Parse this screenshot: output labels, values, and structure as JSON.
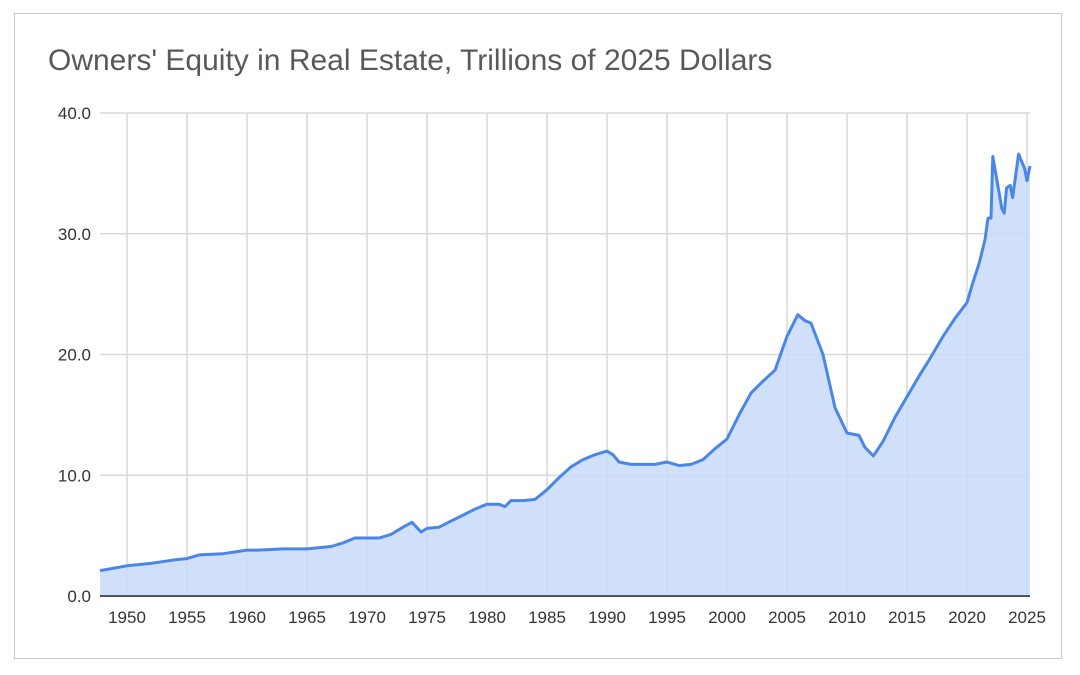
{
  "chart_data": {
    "type": "area",
    "title": "Owners' Equity in Real Estate, Trillions of 2025 Dollars",
    "xlabel": "",
    "ylabel": "",
    "xlim": [
      1947.75,
      2025.25
    ],
    "ylim": [
      0,
      40
    ],
    "grid": true,
    "legend": "none",
    "x_ticks": [
      "1950",
      "1955",
      "1960",
      "1965",
      "1970",
      "1975",
      "1980",
      "1985",
      "1990",
      "1995",
      "2000",
      "2005",
      "2010",
      "2015",
      "2020",
      "2025"
    ],
    "y_ticks": [
      "0.0",
      "10.0",
      "20.0",
      "30.0",
      "40.0"
    ],
    "colors": {
      "line": "#4a86e8",
      "fill": "#c9dbf9",
      "grid": "#d9d9d9"
    },
    "series": [
      {
        "x": [
          1947.75,
          1950,
          1952,
          1954,
          1955,
          1956,
          1958,
          1960,
          1961,
          1963,
          1965,
          1967,
          1968,
          1969,
          1971,
          1972,
          1973,
          1973.75,
          1974.5,
          1975,
          1976,
          1977,
          1978,
          1979,
          1980,
          1981,
          1981.5,
          1982,
          1983,
          1984,
          1985,
          1986,
          1987,
          1988,
          1989,
          1990,
          1990.5,
          1991,
          1992,
          1994,
          1995,
          1996,
          1997,
          1998,
          1999,
          2000,
          2001,
          2002,
          2003,
          2004,
          2005,
          2005.9,
          2006.5,
          2007,
          2008,
          2009,
          2010,
          2011,
          2011.5,
          2012.2,
          2013,
          2014,
          2015,
          2016,
          2017,
          2018,
          2019,
          2020,
          2020.5,
          2021,
          2021.5,
          2021.75,
          2022,
          2022.15,
          2022.9,
          2023.1,
          2023.3,
          2023.6,
          2023.8,
          2024.3,
          2024.8,
          2025.0,
          2025.25
        ],
        "y": [
          2.1,
          2.5,
          2.7,
          3.0,
          3.1,
          3.4,
          3.5,
          3.8,
          3.8,
          3.9,
          3.9,
          4.1,
          4.4,
          4.8,
          4.8,
          5.1,
          5.7,
          6.1,
          5.3,
          5.6,
          5.7,
          6.2,
          6.7,
          7.2,
          7.6,
          7.6,
          7.4,
          7.9,
          7.9,
          8.0,
          8.8,
          9.8,
          10.7,
          11.3,
          11.7,
          12.0,
          11.7,
          11.1,
          10.9,
          10.9,
          11.1,
          10.8,
          10.9,
          11.3,
          12.2,
          13.0,
          15.0,
          16.8,
          17.8,
          18.7,
          21.5,
          23.3,
          22.8,
          22.6,
          20.0,
          15.6,
          13.5,
          13.3,
          12.3,
          11.6,
          12.8,
          14.8,
          16.5,
          18.2,
          19.8,
          21.5,
          23.0,
          24.3,
          26.0,
          27.5,
          29.5,
          31.3,
          31.3,
          36.4,
          32.1,
          31.7,
          33.8,
          34.0,
          33.0,
          36.6,
          35.4,
          34.4,
          35.6
        ]
      }
    ]
  }
}
